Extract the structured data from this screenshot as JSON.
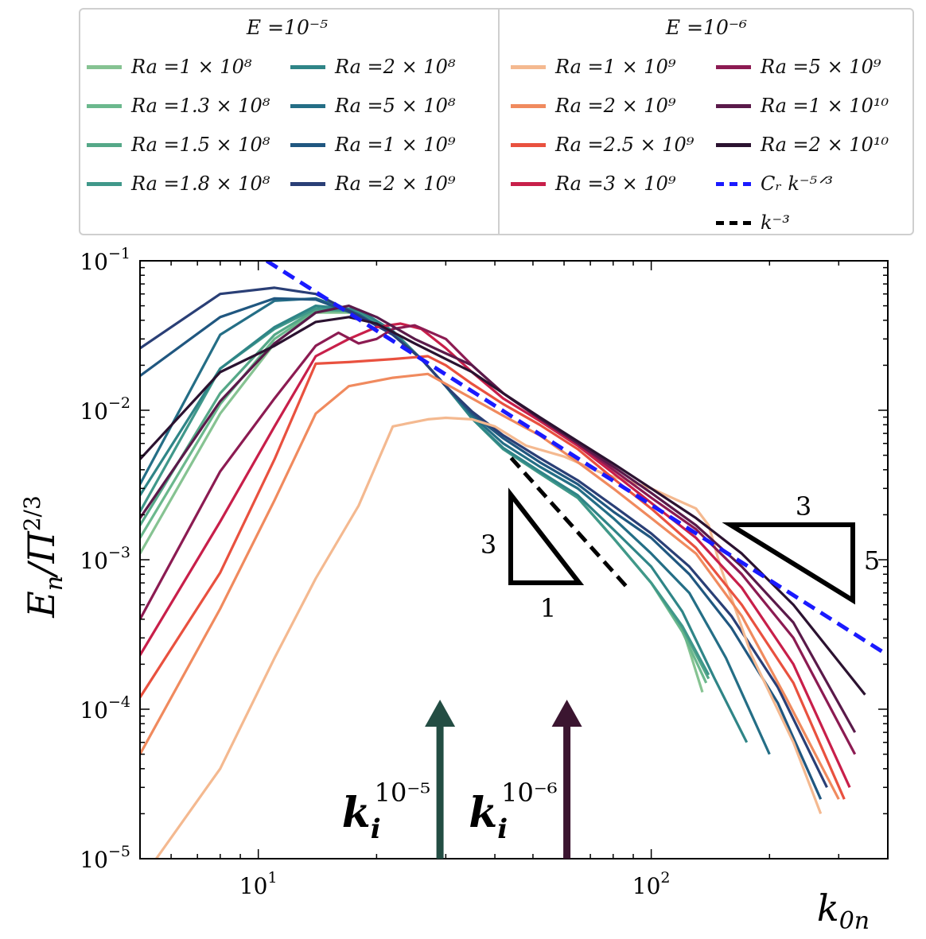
{
  "chart_data": {
    "type": "line",
    "xlabel": "k0n",
    "ylabel": "En/Π2/3",
    "xscale": "log",
    "yscale": "log",
    "xlim": [
      5,
      400
    ],
    "ylim": [
      1e-05,
      0.1
    ],
    "xticks": [
      {
        "value": 10,
        "label": "10",
        "exp": "1"
      },
      {
        "value": 100,
        "label": "10",
        "exp": "2"
      }
    ],
    "yticks": [
      {
        "value": 0.1,
        "label": "10",
        "exp": "−1"
      },
      {
        "value": 0.01,
        "label": "10",
        "exp": "−2"
      },
      {
        "value": 0.001,
        "label": "10",
        "exp": "−3"
      },
      {
        "value": 0.0001,
        "label": "10",
        "exp": "−4"
      },
      {
        "value": 1e-05,
        "label": "10",
        "exp": "−5"
      }
    ],
    "legend": {
      "placement": "top",
      "groups": [
        {
          "title": "E =10⁻⁵",
          "entries": [
            0,
            1,
            2,
            3,
            4,
            5,
            6,
            7
          ]
        },
        {
          "title": "E =10⁻⁶",
          "entries": [
            8,
            9,
            10,
            11,
            12,
            13,
            14
          ]
        }
      ],
      "reference_entries": [
        {
          "label": "C_R k^{-5/3}",
          "text": "Cᵣ k⁻⁵ᐟ³",
          "color": "#1a1aff",
          "dashed": true
        },
        {
          "label": "k^{-3}",
          "text": "k⁻³",
          "color": "#000000",
          "dashed": true
        }
      ]
    },
    "series": [
      {
        "name": "Ra =1 × 10⁸",
        "color": "#86c392",
        "x": [
          5,
          8,
          11,
          14,
          18,
          22,
          26,
          30,
          35,
          42,
          52,
          65,
          80,
          100,
          120,
          135
        ],
        "y": [
          0.0011,
          0.0095,
          0.028,
          0.045,
          0.045,
          0.032,
          0.022,
          0.0145,
          0.0088,
          0.0055,
          0.0038,
          0.0026,
          0.0014,
          0.0007,
          0.00035,
          0.00013
        ]
      },
      {
        "name": "Ra =1.3 × 10⁸",
        "color": "#6bb88d",
        "x": [
          5,
          8,
          11,
          14,
          18,
          22,
          26,
          30,
          35,
          42,
          52,
          65,
          80,
          100,
          120,
          138
        ],
        "y": [
          0.0014,
          0.011,
          0.03,
          0.046,
          0.046,
          0.033,
          0.022,
          0.0145,
          0.0088,
          0.0055,
          0.0038,
          0.0026,
          0.0014,
          0.0007,
          0.00033,
          0.00015
        ]
      },
      {
        "name": "Ra =1.5 × 10⁸",
        "color": "#55a888",
        "x": [
          5,
          8,
          11,
          14,
          18,
          22,
          26,
          30,
          35,
          42,
          52,
          65,
          80,
          100,
          120,
          140
        ],
        "y": [
          0.0017,
          0.013,
          0.032,
          0.047,
          0.046,
          0.033,
          0.022,
          0.0145,
          0.0088,
          0.0055,
          0.0038,
          0.0026,
          0.0014,
          0.0007,
          0.00035,
          0.00016
        ]
      },
      {
        "name": "Ra =1.8 × 10⁸",
        "color": "#40988a",
        "x": [
          5,
          8,
          11,
          14,
          18,
          22,
          26,
          30,
          35,
          42,
          52,
          65,
          80,
          100,
          120,
          140
        ],
        "y": [
          0.0021,
          0.019,
          0.035,
          0.048,
          0.046,
          0.033,
          0.022,
          0.0145,
          0.0088,
          0.0055,
          0.0038,
          0.0026,
          0.0014,
          0.0007,
          0.00036,
          0.00017
        ]
      },
      {
        "name": "Ra =2 × 10⁸",
        "color": "#2f8587",
        "x": [
          5,
          8,
          11,
          14,
          18,
          22,
          26,
          30,
          35,
          42,
          52,
          65,
          80,
          100,
          120,
          145,
          175
        ],
        "y": [
          0.0027,
          0.019,
          0.036,
          0.05,
          0.047,
          0.034,
          0.022,
          0.0145,
          0.0088,
          0.0056,
          0.0039,
          0.0027,
          0.0016,
          0.0009,
          0.00045,
          0.00016,
          6e-05
        ]
      },
      {
        "name": "Ra =5 × 10⁸",
        "color": "#246e86",
        "x": [
          5,
          8,
          11,
          14,
          18,
          22,
          26,
          30,
          35,
          42,
          52,
          65,
          80,
          100,
          125,
          155,
          200
        ],
        "y": [
          0.0032,
          0.032,
          0.054,
          0.056,
          0.044,
          0.032,
          0.022,
          0.0145,
          0.0092,
          0.006,
          0.0042,
          0.003,
          0.0019,
          0.0011,
          0.0006,
          0.00022,
          5e-05
        ]
      },
      {
        "name": "Ra =1 × 10⁹",
        "color": "#205780",
        "x": [
          5,
          8,
          11,
          14,
          18,
          22,
          26,
          30,
          35,
          42,
          52,
          65,
          80,
          100,
          125,
          160,
          210,
          270
        ],
        "y": [
          0.017,
          0.042,
          0.056,
          0.055,
          0.043,
          0.032,
          0.022,
          0.0145,
          0.0095,
          0.0065,
          0.0045,
          0.0032,
          0.0021,
          0.0014,
          0.0008,
          0.00035,
          0.00011,
          2.5e-05
        ]
      },
      {
        "name": "Ra =2 × 10⁹",
        "color": "#2a3f76",
        "x": [
          5,
          8,
          11,
          14,
          18,
          22,
          26,
          30,
          35,
          42,
          52,
          65,
          80,
          100,
          125,
          160,
          210,
          280
        ],
        "y": [
          0.026,
          0.06,
          0.066,
          0.06,
          0.043,
          0.032,
          0.022,
          0.0145,
          0.0098,
          0.0068,
          0.0048,
          0.0034,
          0.0023,
          0.0015,
          0.0009,
          0.00042,
          0.00014,
          3e-05
        ]
      },
      {
        "name": "Ra =1 × 10⁹",
        "color": "#f4b990",
        "x": [
          5.5,
          8,
          11,
          14,
          18,
          22,
          27,
          30,
          35,
          40,
          48,
          60,
          75,
          100,
          130,
          140,
          150,
          180,
          230,
          270
        ],
        "y": [
          1e-05,
          4e-05,
          0.00022,
          0.00075,
          0.0023,
          0.0078,
          0.0087,
          0.0089,
          0.0087,
          0.0078,
          0.0058,
          0.0049,
          0.0038,
          0.003,
          0.0022,
          0.0017,
          0.0009,
          0.00023,
          6e-05,
          2e-05
        ]
      },
      {
        "name": "Ra =2 × 10⁹",
        "color": "#f08a5e",
        "x": [
          5,
          8,
          11,
          14,
          17,
          22,
          27,
          30,
          35,
          42,
          52,
          65,
          80,
          100,
          130,
          170,
          220,
          300
        ],
        "y": [
          5e-05,
          0.00047,
          0.0025,
          0.0095,
          0.0145,
          0.0165,
          0.0175,
          0.015,
          0.012,
          0.0092,
          0.0068,
          0.0045,
          0.003,
          0.0019,
          0.0011,
          0.00042,
          0.00012,
          2.5e-05
        ]
      },
      {
        "name": "Ra =2.5 × 10⁹",
        "color": "#e9513f",
        "x": [
          5,
          8,
          11,
          14,
          17,
          22,
          27,
          30,
          35,
          42,
          52,
          65,
          80,
          100,
          130,
          170,
          230,
          310
        ],
        "y": [
          0.00012,
          0.00082,
          0.0047,
          0.0205,
          0.021,
          0.022,
          0.023,
          0.02,
          0.015,
          0.011,
          0.008,
          0.0055,
          0.0035,
          0.0022,
          0.0012,
          0.0005,
          0.00015,
          2.5e-05
        ]
      },
      {
        "name": "Ra =3 × 10⁹",
        "color": "#c81f4a",
        "x": [
          5,
          8,
          11,
          14,
          17,
          20,
          23,
          26,
          30,
          35,
          42,
          52,
          65,
          80,
          100,
          130,
          170,
          230,
          320
        ],
        "y": [
          0.00023,
          0.0018,
          0.0078,
          0.023,
          0.03,
          0.036,
          0.038,
          0.035,
          0.026,
          0.018,
          0.012,
          0.0085,
          0.0058,
          0.0038,
          0.0024,
          0.0014,
          0.00065,
          0.0002,
          3e-05
        ]
      },
      {
        "name": "Ra =5 × 10⁹",
        "color": "#8c1b52",
        "x": [
          5,
          8,
          11,
          14,
          16,
          18,
          20,
          22,
          25,
          30,
          35,
          42,
          52,
          65,
          80,
          100,
          130,
          170,
          230,
          330
        ],
        "y": [
          0.0004,
          0.0039,
          0.012,
          0.027,
          0.033,
          0.028,
          0.03,
          0.035,
          0.037,
          0.03,
          0.02,
          0.013,
          0.0088,
          0.006,
          0.004,
          0.0026,
          0.0016,
          0.0008,
          0.0003,
          5e-05
        ]
      },
      {
        "name": "Ra =1 × 10¹⁰",
        "color": "#5a1a4a",
        "x": [
          5,
          8,
          11,
          14,
          17,
          20,
          25,
          30,
          35,
          42,
          52,
          65,
          80,
          100,
          130,
          170,
          230,
          330
        ],
        "y": [
          0.0019,
          0.0115,
          0.028,
          0.045,
          0.05,
          0.042,
          0.03,
          0.024,
          0.02,
          0.013,
          0.0088,
          0.006,
          0.0042,
          0.0028,
          0.0017,
          0.0009,
          0.00038,
          7e-05
        ]
      },
      {
        "name": "Ra =2 × 10¹⁰",
        "color": "#2b1230",
        "x": [
          5,
          8,
          11,
          14,
          17,
          20,
          25,
          30,
          35,
          42,
          52,
          65,
          80,
          100,
          130,
          170,
          230,
          350
        ],
        "y": [
          0.0047,
          0.018,
          0.027,
          0.039,
          0.042,
          0.038,
          0.028,
          0.022,
          0.018,
          0.013,
          0.009,
          0.0062,
          0.0044,
          0.003,
          0.0019,
          0.0011,
          0.0005,
          0.000125
        ]
      }
    ],
    "reference_lines": [
      {
        "name": "C_R k^{-5/3}",
        "color": "#1a1aff",
        "x": [
          10.5,
          400
        ],
        "y": [
          0.1,
          0.00023
        ]
      },
      {
        "name": "k^{-3}",
        "color": "#000000",
        "x": [
          44,
          87
        ],
        "y": [
          0.0048,
          0.00065
        ]
      }
    ],
    "annotations": {
      "triangle_left": {
        "vertical": "3",
        "horizontal": "1"
      },
      "triangle_right": {
        "horizontal": "3",
        "vertical": "5"
      },
      "arrows": [
        {
          "label": "k",
          "sub": "i",
          "sup": "10⁻⁵",
          "x": 29,
          "color": "#234d43"
        },
        {
          "label": "k",
          "sub": "i",
          "sup": "10⁻⁶",
          "x": 61,
          "color": "#3b1530"
        }
      ]
    }
  }
}
